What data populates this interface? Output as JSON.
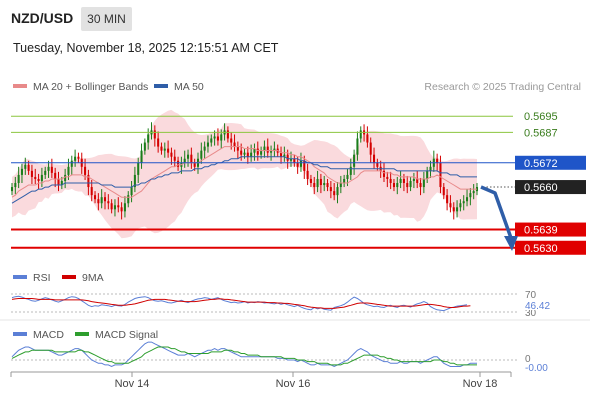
{
  "header": {
    "pair": "NZD/USD",
    "timeframe": "30 MIN",
    "datetime": "Tuesday, November 18, 2025 12:15:51 AM CET",
    "credit": "Research © 2025 Trading Central"
  },
  "legend": {
    "ma20_bb": "MA 20 + Bollinger Bands",
    "ma50": "MA 50",
    "rsi": "RSI",
    "ma9": "9MA",
    "macd": "MACD",
    "macd_signal": "MACD Signal"
  },
  "colors": {
    "candle_up": "#1b7d1b",
    "candle_down": "#d40000",
    "bollinger_fill": "#fadadd",
    "ma20": "#e88a8a",
    "ma50": "#2f5ea8",
    "support": "#e00000",
    "pivot": "#1f55c8",
    "resistance": "#8cc63f",
    "last_price": "#222222",
    "forecast_arrow": "#2f5ea8",
    "rsi_line": "#5b7fd6",
    "rsi_ma": "#d00000",
    "macd_line": "#5b7fd6",
    "macd_signal": "#2e9e2e"
  },
  "chart_data": [
    {
      "type": "candlestick",
      "ylim": [
        0.562,
        0.5705
      ],
      "x_tick_labels": [
        "Nov 14",
        "Nov 16",
        "Nov 18"
      ],
      "levels": [
        {
          "label": "0.5695",
          "value": 0.5695,
          "kind": "resistance"
        },
        {
          "label": "0.5687",
          "value": 0.5687,
          "kind": "resistance"
        },
        {
          "label": "0.5672",
          "value": 0.5672,
          "kind": "pivot"
        },
        {
          "label": "0.5660",
          "value": 0.566,
          "kind": "last_price"
        },
        {
          "label": "0.5639",
          "value": 0.5639,
          "kind": "support"
        },
        {
          "label": "0.5630",
          "value": 0.563,
          "kind": "support"
        }
      ],
      "forecast_target": 0.563,
      "close": [
        0.566,
        0.5662,
        0.5666,
        0.5669,
        0.5671,
        0.5668,
        0.5665,
        0.5664,
        0.5663,
        0.5666,
        0.5668,
        0.567,
        0.5667,
        0.5664,
        0.5661,
        0.5663,
        0.5666,
        0.567,
        0.5673,
        0.5675,
        0.5674,
        0.567,
        0.5666,
        0.566,
        0.5656,
        0.5654,
        0.5652,
        0.5655,
        0.5653,
        0.5652,
        0.5649,
        0.5651,
        0.565,
        0.5648,
        0.5652,
        0.5656,
        0.566,
        0.5666,
        0.5672,
        0.5678,
        0.5682,
        0.5686,
        0.5688,
        0.5684,
        0.568,
        0.5678,
        0.5679,
        0.5677,
        0.5675,
        0.5673,
        0.567,
        0.5672,
        0.5674,
        0.5676,
        0.5672,
        0.567,
        0.5674,
        0.5678,
        0.568,
        0.5682,
        0.5684,
        0.5685,
        0.5683,
        0.5686,
        0.5688,
        0.5684,
        0.5682,
        0.568,
        0.5678,
        0.5676,
        0.5677,
        0.5675,
        0.5677,
        0.5679,
        0.5676,
        0.5678,
        0.568,
        0.5677,
        0.5678,
        0.5679,
        0.5677,
        0.5675,
        0.5676,
        0.5673,
        0.5674,
        0.5672,
        0.567,
        0.5673,
        0.5668,
        0.5664,
        0.5662,
        0.566,
        0.5664,
        0.5661,
        0.5662,
        0.566,
        0.5658,
        0.5656,
        0.566,
        0.5662,
        0.5664,
        0.5666,
        0.567,
        0.5676,
        0.5684,
        0.5688,
        0.5686,
        0.5682,
        0.5676,
        0.5672,
        0.567,
        0.5668,
        0.5665,
        0.5664,
        0.5662,
        0.566,
        0.5662,
        0.5664,
        0.5662,
        0.566,
        0.5663,
        0.5664,
        0.5662,
        0.566,
        0.5664,
        0.5668,
        0.567,
        0.5674,
        0.5672,
        0.566,
        0.5656,
        0.5652,
        0.565,
        0.5648,
        0.565,
        0.5652,
        0.5653,
        0.5655,
        0.5657,
        0.5658,
        0.566
      ],
      "ma20": [
        0.5655,
        0.5656,
        0.5658,
        0.5659,
        0.566,
        0.5661,
        0.5661,
        0.5661,
        0.5662,
        0.5662,
        0.5663,
        0.5663,
        0.5664,
        0.5664,
        0.5664,
        0.5664,
        0.5665,
        0.5665,
        0.5666,
        0.5666,
        0.5666,
        0.5666,
        0.5665,
        0.5665,
        0.5664,
        0.5663,
        0.5662,
        0.5661,
        0.566,
        0.5659,
        0.5658,
        0.5657,
        0.5656,
        0.5655,
        0.5655,
        0.5655,
        0.5655,
        0.5656,
        0.5657,
        0.5658,
        0.566,
        0.5662,
        0.5664,
        0.5665,
        0.5666,
        0.5667,
        0.5668,
        0.5669,
        0.567,
        0.567,
        0.5671,
        0.5671,
        0.5672,
        0.5672,
        0.5672,
        0.5672,
        0.5672,
        0.5673,
        0.5674,
        0.5675,
        0.5676,
        0.5677,
        0.5678,
        0.5679,
        0.568,
        0.568,
        0.568,
        0.568,
        0.568,
        0.568,
        0.5679,
        0.5679,
        0.5679,
        0.5679,
        0.5678,
        0.5678,
        0.5678,
        0.5678,
        0.5678,
        0.5678,
        0.5678,
        0.5677,
        0.5677,
        0.5677,
        0.5676,
        0.5676,
        0.5675,
        0.5675,
        0.5674,
        0.5673,
        0.5672,
        0.567,
        0.5669,
        0.5668,
        0.5667,
        0.5665,
        0.5664,
        0.5663,
        0.5662,
        0.5662,
        0.5662,
        0.5662,
        0.5663,
        0.5664,
        0.5665,
        0.5667,
        0.5668,
        0.5668,
        0.5668,
        0.5668,
        0.5668,
        0.5668,
        0.5667,
        0.5667,
        0.5667,
        0.5666,
        0.5666,
        0.5665,
        0.5665,
        0.5665,
        0.5665,
        0.5665,
        0.5664,
        0.5664,
        0.5664,
        0.5664,
        0.5665,
        0.5665,
        0.5666,
        0.5665,
        0.5664,
        0.5663,
        0.5662,
        0.5661,
        0.566,
        0.5659,
        0.5659,
        0.5659,
        0.5659,
        0.5659,
        0.5659
      ],
      "ma50": [
        0.5652,
        0.5653,
        0.5654,
        0.5655,
        0.5656,
        0.5657,
        0.5658,
        0.5658,
        0.5659,
        0.5659,
        0.566,
        0.566,
        0.5661,
        0.5661,
        0.5661,
        0.5661,
        0.5662,
        0.5662,
        0.5662,
        0.5662,
        0.5662,
        0.5662,
        0.5662,
        0.5662,
        0.5662,
        0.5662,
        0.5662,
        0.5661,
        0.5661,
        0.5661,
        0.5661,
        0.566,
        0.566,
        0.566,
        0.566,
        0.566,
        0.566,
        0.5661,
        0.5661,
        0.5662,
        0.5662,
        0.5663,
        0.5664,
        0.5664,
        0.5665,
        0.5665,
        0.5666,
        0.5666,
        0.5667,
        0.5667,
        0.5667,
        0.5668,
        0.5668,
        0.5668,
        0.5668,
        0.5669,
        0.5669,
        0.5669,
        0.567,
        0.567,
        0.5671,
        0.5671,
        0.5672,
        0.5672,
        0.5673,
        0.5673,
        0.5674,
        0.5674,
        0.5674,
        0.5675,
        0.5675,
        0.5675,
        0.5675,
        0.5675,
        0.5675,
        0.5675,
        0.5675,
        0.5675,
        0.5675,
        0.5675,
        0.5675,
        0.5675,
        0.5675,
        0.5674,
        0.5674,
        0.5674,
        0.5674,
        0.5673,
        0.5673,
        0.5672,
        0.5672,
        0.5671,
        0.5671,
        0.567,
        0.567,
        0.567,
        0.5669,
        0.5669,
        0.5669,
        0.5669,
        0.5669,
        0.5669,
        0.5669,
        0.5669,
        0.5669,
        0.5669,
        0.5669,
        0.5669,
        0.5669,
        0.5669,
        0.5669,
        0.5669,
        0.5669,
        0.5669,
        0.5669,
        0.5669,
        0.5668,
        0.5668,
        0.5668,
        0.5668,
        0.5668,
        0.5668,
        0.5668,
        0.5668,
        0.5668,
        0.5668,
        0.5668,
        0.5668,
        0.5668,
        0.5667,
        0.5667,
        0.5667,
        0.5666,
        0.5666,
        0.5666,
        0.5665,
        0.5665,
        0.5665,
        0.5665,
        0.5665,
        0.5665
      ]
    },
    {
      "type": "line",
      "series": [
        {
          "name": "RSI"
        },
        {
          "name": "9MA"
        }
      ],
      "ylim": [
        30,
        70
      ],
      "y_tick_labels": [
        "70",
        "30"
      ],
      "last_value_label": "46.42",
      "rsi": [
        62,
        64,
        65,
        63,
        60,
        58,
        55,
        54,
        56,
        59,
        62,
        60,
        57,
        54,
        52,
        55,
        58,
        62,
        64,
        63,
        60,
        55,
        50,
        45,
        42,
        44,
        43,
        46,
        45,
        44,
        42,
        45,
        44,
        43,
        47,
        52,
        56,
        60,
        62,
        63,
        64,
        62,
        58,
        55,
        54,
        55,
        53,
        51,
        50,
        52,
        54,
        56,
        53,
        51,
        54,
        57,
        59,
        60,
        62,
        61,
        58,
        60,
        62,
        58,
        55,
        53,
        51,
        52,
        50,
        51,
        53,
        50,
        52,
        51,
        53,
        52,
        50,
        51,
        49,
        48,
        50,
        47,
        49,
        46,
        44,
        42,
        45,
        41,
        38,
        36,
        35,
        40,
        37,
        39,
        36,
        35,
        34,
        40,
        42,
        44,
        47,
        52,
        58,
        63,
        60,
        55,
        49,
        46,
        44,
        42,
        43,
        41,
        40,
        43,
        45,
        42,
        40,
        44,
        45,
        43,
        41,
        45,
        48,
        50,
        53,
        50,
        42,
        38,
        35,
        34,
        33,
        36,
        39,
        41,
        43,
        44,
        45,
        46
      ],
      "ma": [
        58,
        59,
        60,
        60,
        60,
        60,
        60,
        59,
        58,
        58,
        58,
        58,
        58,
        57,
        57,
        57,
        57,
        57,
        57,
        57,
        57,
        57,
        56,
        55,
        53,
        52,
        51,
        50,
        49,
        48,
        47,
        46,
        45,
        45,
        45,
        46,
        47,
        48,
        50,
        52,
        54,
        56,
        57,
        58,
        58,
        58,
        58,
        57,
        56,
        55,
        54,
        54,
        53,
        53,
        53,
        53,
        54,
        55,
        56,
        57,
        58,
        58,
        59,
        59,
        58,
        58,
        57,
        56,
        55,
        54,
        53,
        52,
        52,
        52,
        52,
        52,
        52,
        51,
        51,
        51,
        50,
        50,
        49,
        49,
        48,
        47,
        46,
        45,
        44,
        42,
        41,
        40,
        39,
        39,
        38,
        38,
        38,
        38,
        39,
        40,
        41,
        43,
        45,
        47,
        49,
        50,
        50,
        50,
        49,
        48,
        47,
        46,
        45,
        44,
        43,
        43,
        43,
        43,
        43,
        43,
        43,
        43,
        44,
        45,
        46,
        47,
        47,
        46,
        45,
        44,
        42,
        41,
        40,
        40,
        41,
        42,
        43,
        43,
        44
      ]
    },
    {
      "type": "line",
      "series": [
        {
          "name": "MACD"
        },
        {
          "name": "MACD Signal"
        }
      ],
      "ylim": [
        -0.0005,
        0.0012
      ],
      "y_tick_labels": [
        "0"
      ],
      "last_value_label": "-0.00",
      "macd": [
        0.0002,
        0.0004,
        0.0006,
        0.0007,
        0.0008,
        0.0008,
        0.0007,
        0.0006,
        0.0006,
        0.0006,
        0.0006,
        0.0006,
        0.0005,
        0.0004,
        0.0003,
        0.0003,
        0.0004,
        0.0005,
        0.0006,
        0.0007,
        0.0007,
        0.0006,
        0.0004,
        0.0002,
        0.0,
        -0.0001,
        -0.0002,
        -0.0002,
        -0.0003,
        -0.0003,
        -0.0004,
        -0.0003,
        -0.0003,
        -0.0003,
        -0.0002,
        0.0,
        0.0002,
        0.0004,
        0.0006,
        0.0008,
        0.001,
        0.0011,
        0.0011,
        0.001,
        0.0009,
        0.0008,
        0.0007,
        0.0006,
        0.0005,
        0.0004,
        0.0003,
        0.0003,
        0.0003,
        0.0004,
        0.0003,
        0.0002,
        0.0003,
        0.0004,
        0.0005,
        0.0006,
        0.0006,
        0.0007,
        0.0006,
        0.0007,
        0.0007,
        0.0006,
        0.0005,
        0.0004,
        0.0003,
        0.0002,
        0.0002,
        0.0002,
        0.0002,
        0.0002,
        0.0002,
        0.0002,
        0.0002,
        0.0002,
        0.0002,
        0.0002,
        0.0001,
        0.0001,
        0.0001,
        0.0,
        0.0,
        0.0,
        -0.0001,
        0.0,
        -0.0001,
        -0.0002,
        -0.0003,
        -0.0003,
        -0.0002,
        -0.0003,
        -0.0003,
        -0.0003,
        -0.0003,
        -0.0004,
        -0.0003,
        -0.0002,
        -0.0001,
        0.0,
        0.0002,
        0.0004,
        0.0006,
        0.0007,
        0.0006,
        0.0005,
        0.0003,
        0.0002,
        0.0001,
        0.0,
        -0.0001,
        -0.0001,
        -0.0002,
        -0.0002,
        -0.0002,
        -0.0001,
        -0.0002,
        -0.0002,
        -0.0001,
        -0.0001,
        -0.0001,
        -0.0002,
        -0.0001,
        0.0,
        0.0001,
        0.0002,
        0.0002,
        0.0,
        -0.0002,
        -0.0003,
        -0.0004,
        -0.0004,
        -0.0004,
        -0.0004,
        -0.0003,
        -0.0003,
        -0.0002,
        -0.0002,
        -0.0002
      ],
      "signal": [
        0.0001,
        0.0002,
        0.0003,
        0.0004,
        0.0005,
        0.0005,
        0.0006,
        0.0006,
        0.0006,
        0.0006,
        0.0006,
        0.0006,
        0.0006,
        0.0005,
        0.0005,
        0.0005,
        0.0005,
        0.0005,
        0.0005,
        0.0005,
        0.0006,
        0.0006,
        0.0005,
        0.0005,
        0.0004,
        0.0003,
        0.0002,
        0.0001,
        0.0,
        -0.0001,
        -0.0001,
        -0.0002,
        -0.0002,
        -0.0002,
        -0.0002,
        -0.0002,
        -0.0001,
        0.0,
        0.0001,
        0.0002,
        0.0004,
        0.0005,
        0.0006,
        0.0007,
        0.0008,
        0.0008,
        0.0008,
        0.0008,
        0.0007,
        0.0007,
        0.0006,
        0.0005,
        0.0005,
        0.0004,
        0.0004,
        0.0004,
        0.0004,
        0.0004,
        0.0004,
        0.0004,
        0.0005,
        0.0005,
        0.0005,
        0.0005,
        0.0006,
        0.0006,
        0.0006,
        0.0005,
        0.0005,
        0.0004,
        0.0004,
        0.0003,
        0.0003,
        0.0003,
        0.0003,
        0.0002,
        0.0002,
        0.0002,
        0.0002,
        0.0002,
        0.0002,
        0.0002,
        0.0001,
        0.0001,
        0.0001,
        0.0001,
        0.0,
        0.0,
        0.0,
        -0.0001,
        -0.0001,
        -0.0001,
        -0.0002,
        -0.0002,
        -0.0002,
        -0.0002,
        -0.0003,
        -0.0003,
        -0.0003,
        -0.0003,
        -0.0002,
        -0.0002,
        -0.0001,
        0.0,
        0.0001,
        0.0002,
        0.0003,
        0.0003,
        0.0003,
        0.0003,
        0.0003,
        0.0002,
        0.0002,
        0.0001,
        0.0001,
        0.0,
        0.0,
        -0.0001,
        -0.0001,
        -0.0001,
        -0.0001,
        -0.0001,
        -0.0001,
        -0.0001,
        -0.0001,
        -0.0001,
        -0.0001,
        0.0,
        0.0,
        0.0,
        -0.0001,
        -0.0001,
        -0.0002,
        -0.0002,
        -0.0003,
        -0.0003,
        -0.0003,
        -0.0003,
        -0.0003,
        -0.0003,
        -0.0003
      ]
    }
  ]
}
